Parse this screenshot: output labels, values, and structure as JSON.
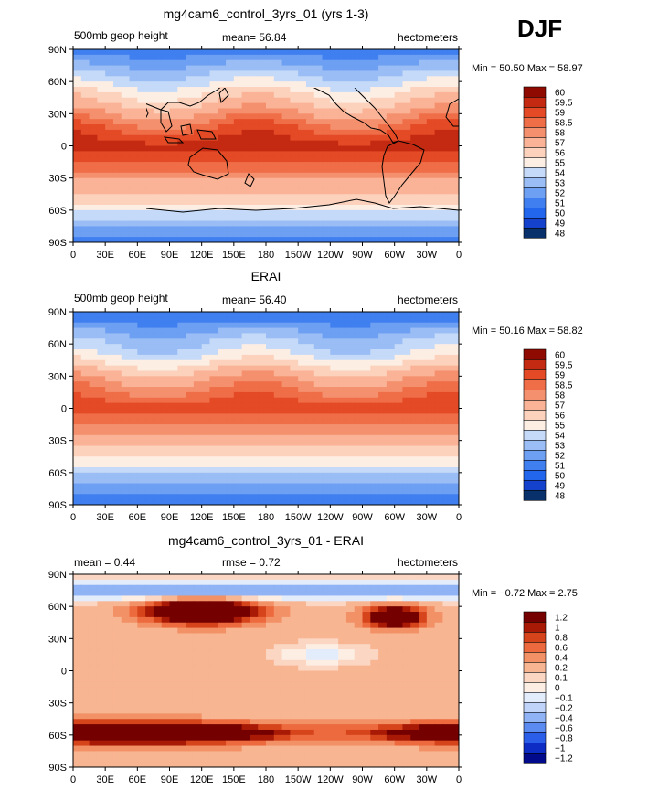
{
  "season": "DJF",
  "palettes": {
    "full": [
      "#08306b",
      "#1442cc",
      "#2266ee",
      "#3f7ff0",
      "#6d9ff2",
      "#99bdf4",
      "#c5daf8",
      "#fdeee4",
      "#fcd2bd",
      "#fab396",
      "#f4906d",
      "#ef6d47",
      "#e34a25",
      "#c42a12",
      "#8f0a00"
    ],
    "diff": [
      "#000a8a",
      "#0d2cc4",
      "#2a5ee8",
      "#5b8bf0",
      "#8fb3f4",
      "#bfd4f8",
      "#e3ecfb",
      "#fdeee4",
      "#fbd6c2",
      "#f8b592",
      "#f29066",
      "#ec6a3d",
      "#d6441c",
      "#a81a06",
      "#750000"
    ]
  },
  "chart_data": [
    {
      "type": "heatmap",
      "title": "mg4cam6_control_3yrs_01 (yrs 1-3)",
      "left_label": "500mb geop height",
      "stat_text": "mean=  56.84",
      "units": "hectometers",
      "minmax_text": "Min =  50.50  Max =  58.97",
      "min": 50.5,
      "max": 58.97,
      "mean": 56.84,
      "levels": [
        "48",
        "49",
        "50",
        "51",
        "52",
        "53",
        "54",
        "55",
        "56",
        "57",
        "58",
        "58.5",
        "59",
        "59.5",
        "60"
      ],
      "palette": "full",
      "field": "control",
      "x_ticks": [
        "0",
        "30E",
        "60E",
        "90E",
        "120E",
        "150E",
        "180",
        "150W",
        "120W",
        "90W",
        "60W",
        "30W",
        "0"
      ],
      "y_ticks": [
        "90N",
        "60N",
        "30N",
        "0",
        "30S",
        "60S",
        "90S"
      ]
    },
    {
      "type": "heatmap",
      "title": "ERAI",
      "left_label": "500mb geop height",
      "stat_text": "mean=  56.40",
      "units": "hectometers",
      "minmax_text": "Min =  50.16  Max =  58.82",
      "min": 50.16,
      "max": 58.82,
      "mean": 56.4,
      "levels": [
        "48",
        "49",
        "50",
        "51",
        "52",
        "53",
        "54",
        "55",
        "56",
        "57",
        "58",
        "58.5",
        "59",
        "59.5",
        "60"
      ],
      "palette": "full",
      "field": "obs",
      "x_ticks": [
        "0",
        "30E",
        "60E",
        "90E",
        "120E",
        "150E",
        "180",
        "150W",
        "120W",
        "90W",
        "60W",
        "30W",
        "0"
      ],
      "y_ticks": [
        "90N",
        "60N",
        "30N",
        "0",
        "30S",
        "60S",
        "90S"
      ]
    },
    {
      "type": "heatmap",
      "title": "mg4cam6_control_3yrs_01 - ERAI",
      "left_label": "mean =      0.44",
      "stat_text": "rmse =      0.72",
      "units": "hectometers",
      "minmax_text": "Min =  −0.72  Max =     2.75",
      "min": -0.72,
      "max": 2.75,
      "mean": 0.44,
      "rmse": 0.72,
      "levels": [
        "−1.2",
        "−1",
        "−0.8",
        "−0.6",
        "−0.4",
        "−0.2",
        "−0.1",
        "0",
        "0.1",
        "0.2",
        "0.4",
        "0.6",
        "0.8",
        "1",
        "1.2"
      ],
      "palette": "diff",
      "field": "diff",
      "x_ticks": [
        "0",
        "30E",
        "60E",
        "90E",
        "120E",
        "150E",
        "180",
        "150W",
        "120W",
        "90W",
        "60W",
        "30W",
        "0"
      ],
      "y_ticks": [
        "90N",
        "60N",
        "30N",
        "0",
        "30S",
        "60S",
        "90S"
      ]
    }
  ]
}
